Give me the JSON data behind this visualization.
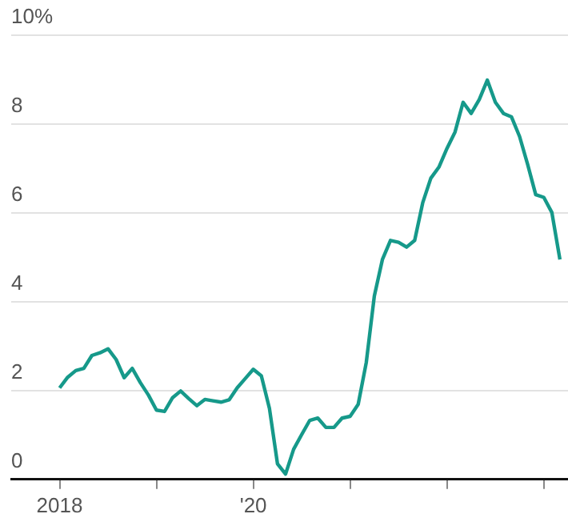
{
  "chart_data": {
    "type": "line",
    "x": [
      "2018-01",
      "2018-02",
      "2018-03",
      "2018-04",
      "2018-05",
      "2018-06",
      "2018-07",
      "2018-08",
      "2018-09",
      "2018-10",
      "2018-11",
      "2018-12",
      "2019-01",
      "2019-02",
      "2019-03",
      "2019-04",
      "2019-05",
      "2019-06",
      "2019-07",
      "2019-08",
      "2019-09",
      "2019-10",
      "2019-11",
      "2019-12",
      "2020-01",
      "2020-02",
      "2020-03",
      "2020-04",
      "2020-05",
      "2020-06",
      "2020-07",
      "2020-08",
      "2020-09",
      "2020-10",
      "2020-11",
      "2020-12",
      "2021-01",
      "2021-02",
      "2021-03",
      "2021-04",
      "2021-05",
      "2021-06",
      "2021-07",
      "2021-08",
      "2021-09",
      "2021-10",
      "2021-11",
      "2021-12",
      "2022-01",
      "2022-02",
      "2022-03",
      "2022-04",
      "2022-05",
      "2022-06",
      "2022-07",
      "2022-08",
      "2022-09",
      "2022-10",
      "2022-11",
      "2022-12",
      "2023-01",
      "2023-02",
      "2023-03"
    ],
    "series": [
      {
        "color": "#16998a",
        "values": [
          2.06,
          2.3,
          2.45,
          2.5,
          2.79,
          2.85,
          2.94,
          2.7,
          2.29,
          2.5,
          2.18,
          1.9,
          1.56,
          1.53,
          1.84,
          1.99,
          1.82,
          1.66,
          1.8,
          1.77,
          1.74,
          1.79,
          2.06,
          2.27,
          2.48,
          2.33,
          1.6,
          0.35,
          0.12,
          0.68,
          1.01,
          1.33,
          1.38,
          1.17,
          1.17,
          1.38,
          1.42,
          1.69,
          2.63,
          4.13,
          4.95,
          5.38,
          5.34,
          5.23,
          5.38,
          6.23,
          6.78,
          7.03,
          7.45,
          7.82,
          8.49,
          8.24,
          8.55,
          8.99,
          8.49,
          8.24,
          8.16,
          7.72,
          7.09,
          6.41,
          6.35,
          6.01,
          4.95
        ]
      }
    ],
    "xlim": [
      "2017-07",
      "2023-04"
    ],
    "xticks": [
      {
        "value": "2018",
        "label": "2018"
      },
      {
        "value": "2019",
        "label": null
      },
      {
        "value": "2020",
        "label": "'20"
      },
      {
        "value": "2021",
        "label": null
      },
      {
        "value": "2022",
        "label": null
      },
      {
        "value": "2023",
        "label": null
      }
    ],
    "ylim": [
      0,
      10
    ],
    "yticks": [
      0,
      2,
      4,
      6,
      8,
      {
        "value": 10,
        "label": "10%"
      }
    ],
    "grid": "y",
    "marker": "none",
    "line_style": "solid"
  }
}
